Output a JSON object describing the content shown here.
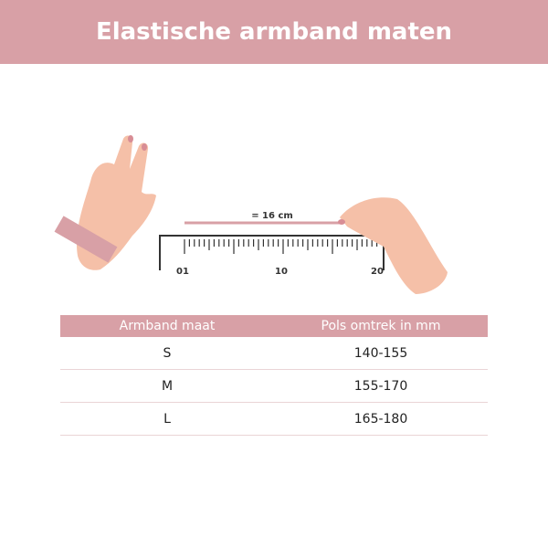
{
  "header": {
    "title": "Elastische armband maten"
  },
  "illustration": {
    "measure_label": "= 16 cm",
    "ruler_labels": [
      "01",
      "10",
      "20"
    ]
  },
  "table": {
    "columns": [
      "Armband maat",
      "Pols omtrek in mm"
    ],
    "rows": [
      [
        "S",
        "140-155"
      ],
      [
        "M",
        "155-170"
      ],
      [
        "L",
        "165-180"
      ]
    ]
  }
}
